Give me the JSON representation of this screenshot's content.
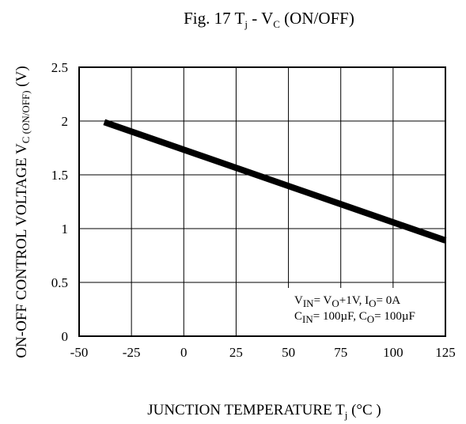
{
  "chart_data": {
    "type": "line",
    "title": {
      "prefix": "Fig. 17 T",
      "sub1": "j",
      "mid": " - V",
      "sub2": "C",
      "suffix": " (ON/OFF)"
    },
    "xlabel": {
      "main": "JUNCTION TEMPERATURE  T",
      "sub": "j",
      "unit": " (°C )"
    },
    "ylabel": {
      "main": "ON-OFF CONTROL VOLTAGE  V",
      "sub": "C (ON/OFF)",
      "unit": " (V)"
    },
    "xlim": [
      -50,
      125
    ],
    "ylim": [
      0,
      2.5
    ],
    "x_ticks": [
      -50,
      -25,
      0,
      25,
      50,
      75,
      100,
      125
    ],
    "y_ticks": [
      "0",
      "0.5",
      "1",
      "1.5",
      "2",
      "2.5"
    ],
    "grid": true,
    "series": [
      {
        "x": [
          -38,
          125
        ],
        "y": [
          1.99,
          0.89
        ],
        "color": "#000000"
      }
    ],
    "conditions": {
      "line1": {
        "a": "V",
        "a_sub": "IN",
        "b": "= V",
        "b_sub": "O",
        "c": "+1V, I",
        "c_sub": "O",
        "d": "= 0A"
      },
      "line2": {
        "a": "C",
        "a_sub": "IN",
        "b": "= 100µF, C",
        "b_sub": "O",
        "c": "= 100µF"
      }
    }
  }
}
